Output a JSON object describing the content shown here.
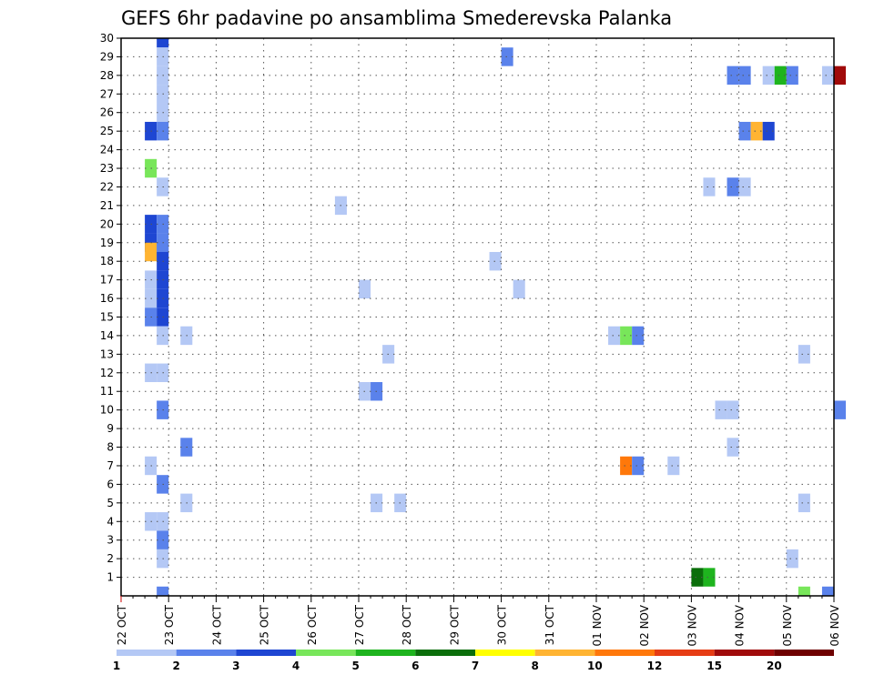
{
  "chart_data": {
    "type": "heatmap",
    "title": "GEFS 6hr padavine po ansamblima Smederevska Palanka",
    "y_ticks": [
      "1",
      "2",
      "3",
      "4",
      "5",
      "6",
      "7",
      "8",
      "9",
      "10",
      "11",
      "12",
      "13",
      "14",
      "15",
      "16",
      "17",
      "18",
      "19",
      "20",
      "21",
      "22",
      "23",
      "24",
      "25",
      "26",
      "27",
      "28",
      "29",
      "30"
    ],
    "x_ticks": [
      "22 OCT",
      "23 OCT",
      "24 OCT",
      "25 OCT",
      "26 OCT",
      "27 OCT",
      "28 OCT",
      "29 OCT",
      "30 OCT",
      "31 OCT",
      "01 NOV",
      "02 NOV",
      "03 NOV",
      "04 NOV",
      "05 NOV",
      "06 NOV"
    ],
    "legend": {
      "colors": [
        "#b4c8f5",
        "#5a82eb",
        "#1e46d2",
        "#78e65a",
        "#1eb41e",
        "#0a6e0a",
        "#ffff00",
        "#ffb432",
        "#ff780a",
        "#e63c14",
        "#a00a0a",
        "#6e0000"
      ],
      "labels": [
        "1",
        "2",
        "3",
        "4",
        "5",
        "6",
        "7",
        "8",
        "10",
        "12",
        "15",
        "20"
      ]
    },
    "cells": [
      {
        "t": 4,
        "m": 30,
        "c": 3
      },
      {
        "t": 4,
        "m": 29,
        "c": 1
      },
      {
        "t": 33,
        "m": 29,
        "c": 2
      },
      {
        "t": 4,
        "m": 28,
        "c": 1
      },
      {
        "t": 52,
        "m": 28,
        "c": 2
      },
      {
        "t": 53,
        "m": 28,
        "c": 2
      },
      {
        "t": 55,
        "m": 28,
        "c": 1
      },
      {
        "t": 56,
        "m": 28,
        "c": 5
      },
      {
        "t": 57,
        "m": 28,
        "c": 2
      },
      {
        "t": 60,
        "m": 28,
        "c": 1
      },
      {
        "t": 61,
        "m": 28,
        "c": 11
      },
      {
        "t": 4,
        "m": 27,
        "c": 1
      },
      {
        "t": 4,
        "m": 26,
        "c": 1
      },
      {
        "t": 3,
        "m": 25,
        "c": 3
      },
      {
        "t": 4,
        "m": 25,
        "c": 2
      },
      {
        "t": 53,
        "m": 25,
        "c": 2
      },
      {
        "t": 54,
        "m": 25,
        "c": 8
      },
      {
        "t": 55,
        "m": 25,
        "c": 3
      },
      {
        "t": 3,
        "m": 23,
        "c": 4
      },
      {
        "t": 4,
        "m": 22,
        "c": 1
      },
      {
        "t": 50,
        "m": 22,
        "c": 1
      },
      {
        "t": 52,
        "m": 22,
        "c": 2
      },
      {
        "t": 53,
        "m": 22,
        "c": 1
      },
      {
        "t": 19,
        "m": 21,
        "c": 1
      },
      {
        "t": 3,
        "m": 20,
        "c": 3
      },
      {
        "t": 4,
        "m": 20,
        "c": 2
      },
      {
        "t": 3,
        "m": 19,
        "c": 3
      },
      {
        "t": 4,
        "m": 19,
        "c": 2
      },
      {
        "t": 3,
        "m": 18.5,
        "c": 8
      },
      {
        "t": 4,
        "m": 18.5,
        "c": 2
      },
      {
        "t": 4,
        "m": 18,
        "c": 3
      },
      {
        "t": 32,
        "m": 18,
        "c": 1
      },
      {
        "t": 3,
        "m": 17,
        "c": 1
      },
      {
        "t": 4,
        "m": 17,
        "c": 3
      },
      {
        "t": 21,
        "m": 16.5,
        "c": 1
      },
      {
        "t": 34,
        "m": 16.5,
        "c": 1
      },
      {
        "t": 3,
        "m": 16,
        "c": 1
      },
      {
        "t": 4,
        "m": 16,
        "c": 3
      },
      {
        "t": 3,
        "m": 15,
        "c": 2
      },
      {
        "t": 4,
        "m": 15,
        "c": 3
      },
      {
        "t": 4,
        "m": 14,
        "c": 1
      },
      {
        "t": 6,
        "m": 14,
        "c": 1
      },
      {
        "t": 42,
        "m": 14,
        "c": 1
      },
      {
        "t": 43,
        "m": 14,
        "c": 4
      },
      {
        "t": 44,
        "m": 14,
        "c": 2
      },
      {
        "t": 23,
        "m": 13,
        "c": 1
      },
      {
        "t": 58,
        "m": 13,
        "c": 1
      },
      {
        "t": 3,
        "m": 12,
        "c": 1
      },
      {
        "t": 4,
        "m": 12,
        "c": 1
      },
      {
        "t": 21,
        "m": 11,
        "c": 1
      },
      {
        "t": 22,
        "m": 11,
        "c": 2
      },
      {
        "t": 4,
        "m": 10,
        "c": 2
      },
      {
        "t": 51,
        "m": 10,
        "c": 1
      },
      {
        "t": 52,
        "m": 10,
        "c": 1
      },
      {
        "t": 61,
        "m": 10,
        "c": 2
      },
      {
        "t": 6,
        "m": 8,
        "c": 2
      },
      {
        "t": 52,
        "m": 8,
        "c": 1
      },
      {
        "t": 3,
        "m": 7,
        "c": 1
      },
      {
        "t": 43,
        "m": 7,
        "c": 9
      },
      {
        "t": 44,
        "m": 7,
        "c": 2
      },
      {
        "t": 47,
        "m": 7,
        "c": 1
      },
      {
        "t": 4,
        "m": 6,
        "c": 2
      },
      {
        "t": 6,
        "m": 5,
        "c": 1
      },
      {
        "t": 22,
        "m": 5,
        "c": 1
      },
      {
        "t": 24,
        "m": 5,
        "c": 1
      },
      {
        "t": 58,
        "m": 5,
        "c": 1
      },
      {
        "t": 3,
        "m": 4,
        "c": 1
      },
      {
        "t": 4,
        "m": 4,
        "c": 1
      },
      {
        "t": 4,
        "m": 3,
        "c": 2
      },
      {
        "t": 4,
        "m": 2,
        "c": 1
      },
      {
        "t": 57,
        "m": 2,
        "c": 1
      },
      {
        "t": 49,
        "m": 1,
        "c": 6
      },
      {
        "t": 50,
        "m": 1,
        "c": 5
      },
      {
        "t": 4,
        "m": 0,
        "c": 2
      },
      {
        "t": 58,
        "m": 0,
        "c": 4
      },
      {
        "t": 60,
        "m": 0,
        "c": 2
      }
    ]
  }
}
